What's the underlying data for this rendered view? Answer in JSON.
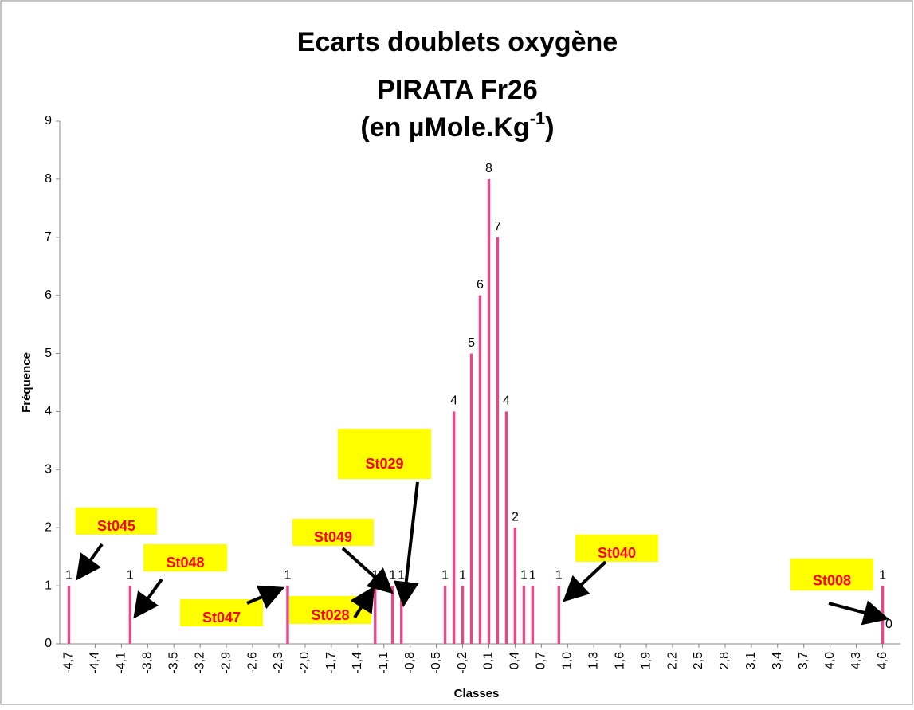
{
  "chart_data": {
    "type": "bar",
    "title": [
      "Ecarts doublets oxygène",
      "PIRATA Fr26"
    ],
    "title_unit": {
      "text": "(en µMole.Kg",
      "superscript": "-1",
      "close": ")"
    },
    "x_label": "Classes",
    "y_label": "Fréquence",
    "color": "#e8488a",
    "categories": [
      "-4,7",
      null,
      null,
      "-4,4",
      null,
      null,
      "-4,1",
      null,
      null,
      "-3,8",
      null,
      null,
      "-3,5",
      null,
      null,
      "-3,2",
      null,
      null,
      "-2,9",
      null,
      null,
      "-2,6",
      null,
      null,
      "-2,3",
      null,
      null,
      "-2,0",
      null,
      null,
      "-1,7",
      null,
      null,
      "-1,4",
      null,
      null,
      "-1,1",
      null,
      null,
      "-0,8",
      null,
      null,
      "-0,5",
      null,
      null,
      "-0,2",
      null,
      null,
      "0,1",
      null,
      null,
      "0,4",
      null,
      null,
      "0,7",
      null,
      null,
      "1,0",
      null,
      null,
      "1,3",
      null,
      null,
      "1,6",
      null,
      null,
      "1,9",
      null,
      null,
      "2,2",
      null,
      null,
      "2,5",
      null,
      null,
      "2,8",
      null,
      null,
      "3,1",
      null,
      null,
      "3,4",
      null,
      null,
      "3,7",
      null,
      null,
      "4,0",
      null,
      null,
      "4,3",
      null,
      null,
      "4,6",
      null
    ],
    "values": [
      1,
      0,
      0,
      0,
      0,
      0,
      0,
      1,
      0,
      0,
      0,
      0,
      0,
      0,
      0,
      0,
      0,
      0,
      0,
      0,
      0,
      0,
      0,
      0,
      0,
      1,
      0,
      0,
      0,
      0,
      0,
      0,
      0,
      0,
      0,
      1,
      0,
      1,
      1,
      0,
      0,
      0,
      0,
      1,
      4,
      1,
      5,
      6,
      8,
      7,
      4,
      2,
      1,
      1,
      0,
      0,
      1,
      0,
      0,
      0,
      0,
      0,
      0,
      0,
      0,
      0,
      0,
      0,
      0,
      0,
      0,
      0,
      0,
      0,
      0,
      0,
      0,
      0,
      0,
      0,
      0,
      0,
      0,
      0,
      0,
      0,
      0,
      0,
      0,
      0,
      0,
      0,
      0,
      1,
      0
    ],
    "ylim": [
      0,
      9
    ],
    "yticks": [
      0,
      1,
      2,
      3,
      4,
      5,
      6,
      7,
      8,
      9
    ],
    "grid": false,
    "annotations": [
      "St045",
      "St048",
      "St047",
      "St049",
      "St028",
      "St029",
      "St040",
      "St008"
    ]
  }
}
